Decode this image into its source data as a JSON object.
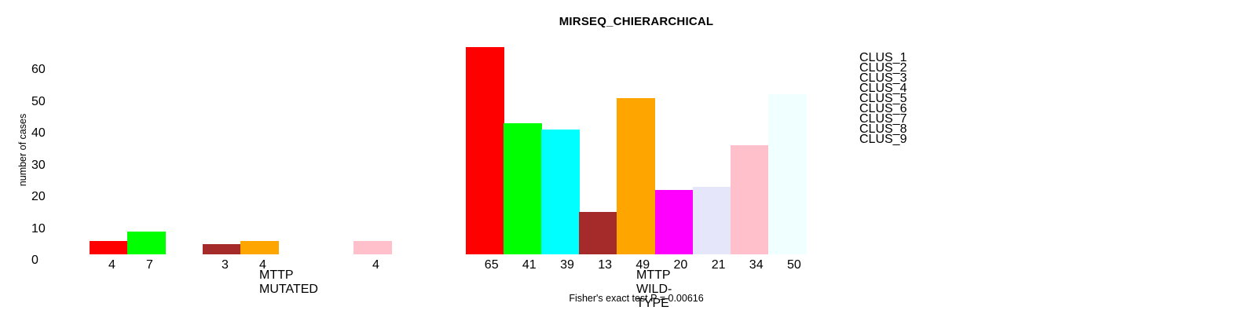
{
  "chart_data": {
    "type": "bar",
    "title": "MIRSEQ_CHIERARCHICAL",
    "ylabel": "number of cases",
    "ylim": [
      0,
      65
    ],
    "yticks": [
      0,
      10,
      20,
      30,
      40,
      50,
      60
    ],
    "grid": false,
    "legend_position": "right",
    "clusters": [
      {
        "name": "CLUS_1",
        "color": "#FF0000"
      },
      {
        "name": "CLUS_2",
        "color": "#00FF00"
      },
      {
        "name": "CLUS_3",
        "color": "#00FFFF"
      },
      {
        "name": "CLUS_4",
        "color": "#A52A2A"
      },
      {
        "name": "CLUS_5",
        "color": "#FFA500"
      },
      {
        "name": "CLUS_6",
        "color": "#FF00FF"
      },
      {
        "name": "CLUS_7",
        "color": "#E6E6FA"
      },
      {
        "name": "CLUS_8",
        "color": "#FFC0CB"
      },
      {
        "name": "CLUS_9",
        "color": "#F0FFFF"
      }
    ],
    "panels": [
      {
        "id": "mutated",
        "xlabel": "MTTP MUTATED",
        "values": [
          4,
          7,
          0,
          3,
          4,
          0,
          0,
          4,
          0
        ]
      },
      {
        "id": "wild-type",
        "xlabel": "MTTP WILD-TYPE",
        "values": [
          65,
          41,
          39,
          13,
          49,
          20,
          21,
          34,
          50
        ]
      }
    ],
    "annotation": "Fisher's exact test P = 0.00616"
  }
}
